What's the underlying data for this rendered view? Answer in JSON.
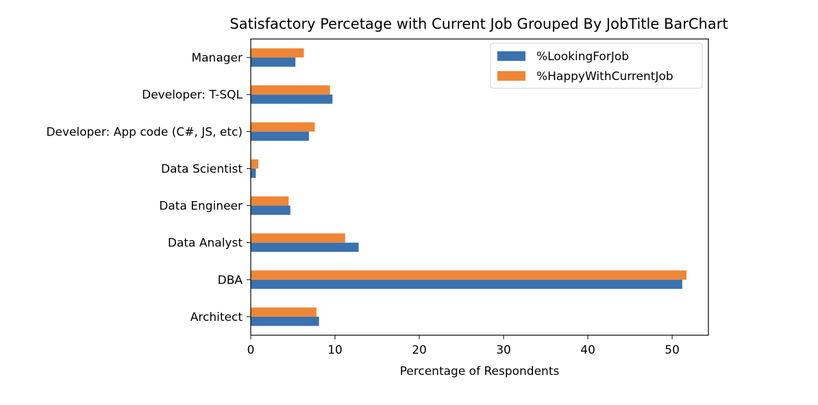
{
  "chart_data": {
    "type": "bar",
    "orientation": "horizontal",
    "title": "Satisfactory Percetage with Current Job Grouped By JobTitle BarChart",
    "xlabel": "Percentage of Respondents",
    "ylabel": "",
    "categories": [
      "Architect",
      "DBA",
      "Data Analyst",
      "Data Engineer",
      "Data Scientist",
      "Developer: App code (C#, JS, etc)",
      "Developer: T-SQL",
      "Manager"
    ],
    "series": [
      {
        "name": "%LookingForJob",
        "color": "#3a72b0",
        "values": [
          8.1,
          51.2,
          12.8,
          4.7,
          0.6,
          6.9,
          9.7,
          5.3
        ]
      },
      {
        "name": "%HappyWithCurrentJob",
        "color": "#ef8636",
        "values": [
          7.8,
          51.7,
          11.2,
          4.5,
          0.9,
          7.6,
          9.4,
          6.3
        ]
      }
    ],
    "xlim": [
      0,
      54.3
    ],
    "xticks": [
      0,
      10,
      20,
      30,
      40,
      50
    ],
    "grid": false,
    "legend_position": "top-right"
  }
}
